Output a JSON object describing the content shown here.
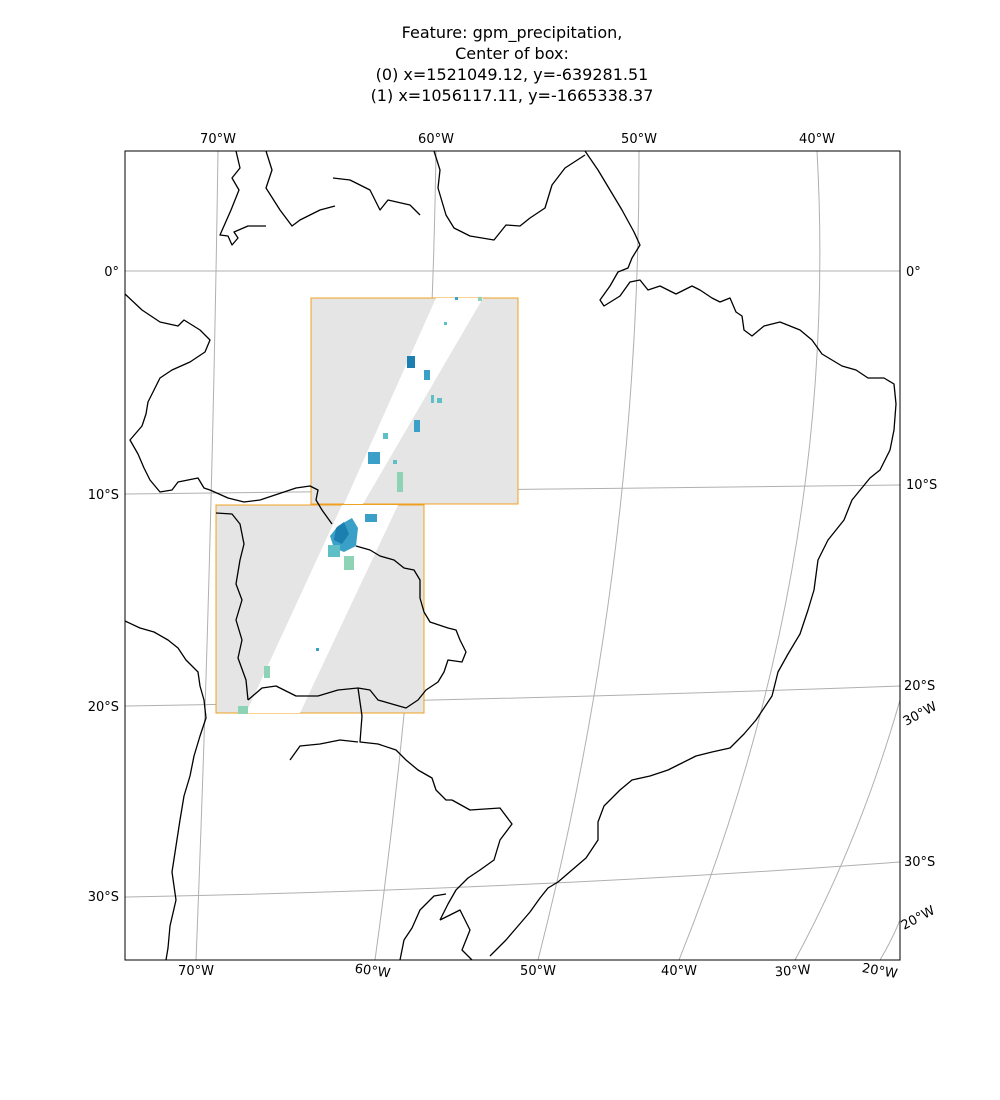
{
  "title": {
    "line1": "Feature: gpm_precipitation,",
    "line2": "Center of box:",
    "line3": "(0) x=1521049.12, y=-639281.51",
    "line4": "(1) x=1056117.11, y=-1665338.37"
  },
  "map": {
    "projection": "conic (South America)",
    "gridlines": "on",
    "box_color": "#f0a020",
    "mask_color": "#e5e5e5",
    "precip_colors": [
      "#1b7fb0",
      "#3aa0c8",
      "#5fbfc7",
      "#8fd3b6"
    ],
    "labels": {
      "top": [
        "70°W",
        "60°W",
        "50°W",
        "40°W"
      ],
      "left": [
        "0°",
        "10°S",
        "20°S",
        "30°S"
      ],
      "right": [
        "0°",
        "10°S",
        "20°S",
        "30°W",
        "30°S",
        "20°W"
      ],
      "bottom": [
        "70°W",
        "60°W",
        "50°W",
        "40°W",
        "30°W",
        "20°W"
      ]
    }
  }
}
